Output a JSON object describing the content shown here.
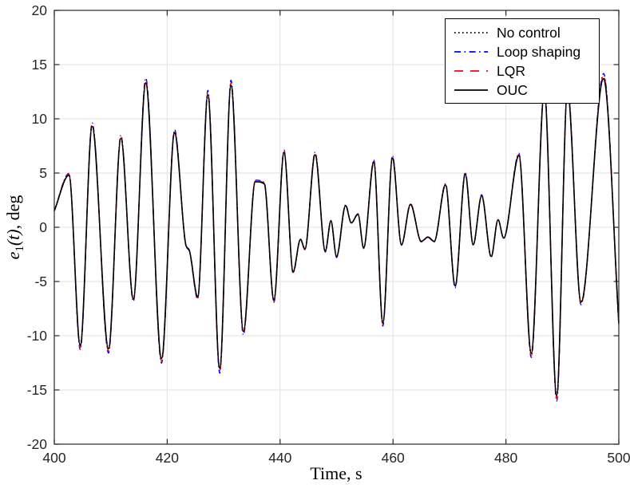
{
  "figure": {
    "background": "#ffffff",
    "axes_box_color": "#262626",
    "grid_color": "#e2e2e2",
    "tick_label_color": "#262626"
  },
  "chart_data": {
    "type": "line",
    "title": "",
    "xlabel": "Time, s",
    "ylabel": "e1(t), deg",
    "ylabel_parts": {
      "var": "e",
      "sub": "1",
      "args": "(t)",
      "unit": ", deg"
    },
    "xlim": [
      400,
      500
    ],
    "ylim": [
      -20,
      20
    ],
    "xticks": [
      400,
      420,
      440,
      460,
      480,
      500
    ],
    "yticks": [
      -20,
      -15,
      -10,
      -5,
      0,
      5,
      10,
      15,
      20
    ],
    "grid": true,
    "tick_direction": "in",
    "legend": {
      "position": "top-right",
      "border_color": "#000000",
      "background": "#ffffff"
    },
    "series": [
      {
        "name": "No control",
        "color": "#000000",
        "line_style": "dotted",
        "amplitude_scale": 1.0
      },
      {
        "name": "Loop shaping",
        "color": "#0000ff",
        "line_style": "dash-dot",
        "amplitude_scale": 1.035
      },
      {
        "name": "LQR",
        "color": "#ff0000",
        "line_style": "dashed",
        "amplitude_scale": 1.018
      },
      {
        "name": "OUC",
        "color": "#000000",
        "line_style": "solid",
        "amplitude_scale": 1.0
      }
    ],
    "overlap_note": "All four curves nearly coincide; shared_keypoints lists the common waveform extrema [time s, e1 deg]. Loop shaping / LQR deviate only slightly (larger amplitude fringes at peaks); peaks near t=487 and t=491 are hidden behind the legend box.",
    "shared_keypoints": [
      [
        400.0,
        1.5
      ],
      [
        402.6,
        4.8
      ],
      [
        404.6,
        -10.9
      ],
      [
        406.7,
        9.3
      ],
      [
        409.6,
        -11.2
      ],
      [
        411.8,
        8.2
      ],
      [
        414.0,
        -6.6
      ],
      [
        416.2,
        13.3
      ],
      [
        419.0,
        -12.1
      ],
      [
        421.3,
        8.7
      ],
      [
        423.3,
        -1.6
      ],
      [
        423.9,
        -2.1
      ],
      [
        425.4,
        -6.4
      ],
      [
        427.2,
        12.2
      ],
      [
        429.3,
        -13.0
      ],
      [
        431.3,
        13.1
      ],
      [
        433.5,
        -9.6
      ],
      [
        435.6,
        4.2
      ],
      [
        437.2,
        4.0
      ],
      [
        438.9,
        -6.7
      ],
      [
        440.7,
        6.9
      ],
      [
        442.3,
        -4.1
      ],
      [
        443.6,
        -1.1
      ],
      [
        444.4,
        -2.0
      ],
      [
        446.2,
        6.7
      ],
      [
        448.0,
        -2.2
      ],
      [
        449.0,
        0.6
      ],
      [
        450.0,
        -2.7
      ],
      [
        451.6,
        2.0
      ],
      [
        452.6,
        0.4
      ],
      [
        453.8,
        1.2
      ],
      [
        454.8,
        -1.9
      ],
      [
        456.6,
        6.0
      ],
      [
        458.2,
        -8.8
      ],
      [
        459.9,
        6.4
      ],
      [
        461.5,
        -1.6
      ],
      [
        463.1,
        2.1
      ],
      [
        465.0,
        -1.3
      ],
      [
        466.2,
        -0.9
      ],
      [
        467.3,
        -1.3
      ],
      [
        469.3,
        3.9
      ],
      [
        471.0,
        -5.4
      ],
      [
        472.8,
        4.9
      ],
      [
        474.2,
        -1.6
      ],
      [
        475.7,
        2.9
      ],
      [
        477.4,
        -2.7
      ],
      [
        478.6,
        0.7
      ],
      [
        479.6,
        -1.0
      ],
      [
        482.3,
        6.6
      ],
      [
        484.5,
        -11.6
      ],
      [
        486.8,
        12.5
      ],
      [
        489.0,
        -15.5
      ],
      [
        490.9,
        12.6
      ],
      [
        493.3,
        -6.9
      ],
      [
        497.3,
        13.7
      ],
      [
        500.0,
        -8.8
      ]
    ]
  }
}
